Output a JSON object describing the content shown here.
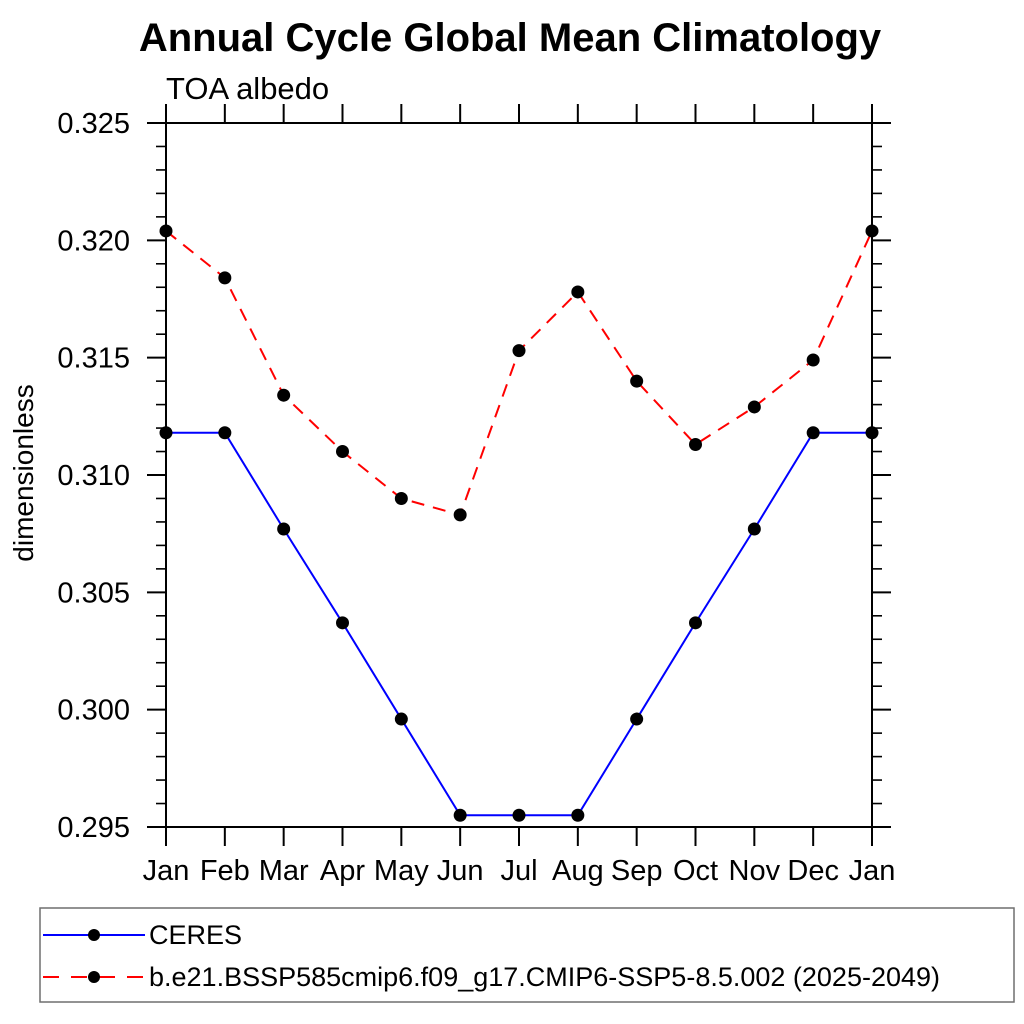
{
  "chart_data": {
    "type": "line",
    "title": "Annual Cycle Global Mean Climatology",
    "subtitle": "TOA albedo",
    "ylabel": "dimensionless",
    "xlabel": "",
    "categories": [
      "Jan",
      "Feb",
      "Mar",
      "Apr",
      "May",
      "Jun",
      "Jul",
      "Aug",
      "Sep",
      "Oct",
      "Nov",
      "Dec",
      "Jan"
    ],
    "ylim": [
      0.295,
      0.325
    ],
    "ytick_major_step": 0.005,
    "ytick_minor_step": 0.001,
    "ytick_labels": [
      "0.295",
      "0.300",
      "0.305",
      "0.310",
      "0.315",
      "0.320",
      "0.325"
    ],
    "grid": false,
    "legend_position": "bottom-left-box",
    "axis_color": "#000000",
    "marker_color": "#000000",
    "legend_border_color": "#6f6f6f",
    "series": [
      {
        "name": "CERES",
        "color": "#0000ff",
        "line_style": "solid",
        "marker": "filled-circle",
        "values": [
          0.3118,
          0.3118,
          0.3077,
          0.3037,
          0.2996,
          0.2955,
          0.2955,
          0.2955,
          0.2996,
          0.3037,
          0.3077,
          0.3118,
          0.3118
        ]
      },
      {
        "name": "b.e21.BSSP585cmip6.f09_g17.CMIP6-SSP5-8.5.002 (2025-2049)",
        "color": "#ff0000",
        "line_style": "dashed",
        "marker": "filled-circle",
        "values": [
          0.3204,
          0.3184,
          0.3134,
          0.311,
          0.309,
          0.3083,
          0.3153,
          0.3178,
          0.314,
          0.3113,
          0.3129,
          0.3149,
          0.3204
        ]
      }
    ]
  }
}
